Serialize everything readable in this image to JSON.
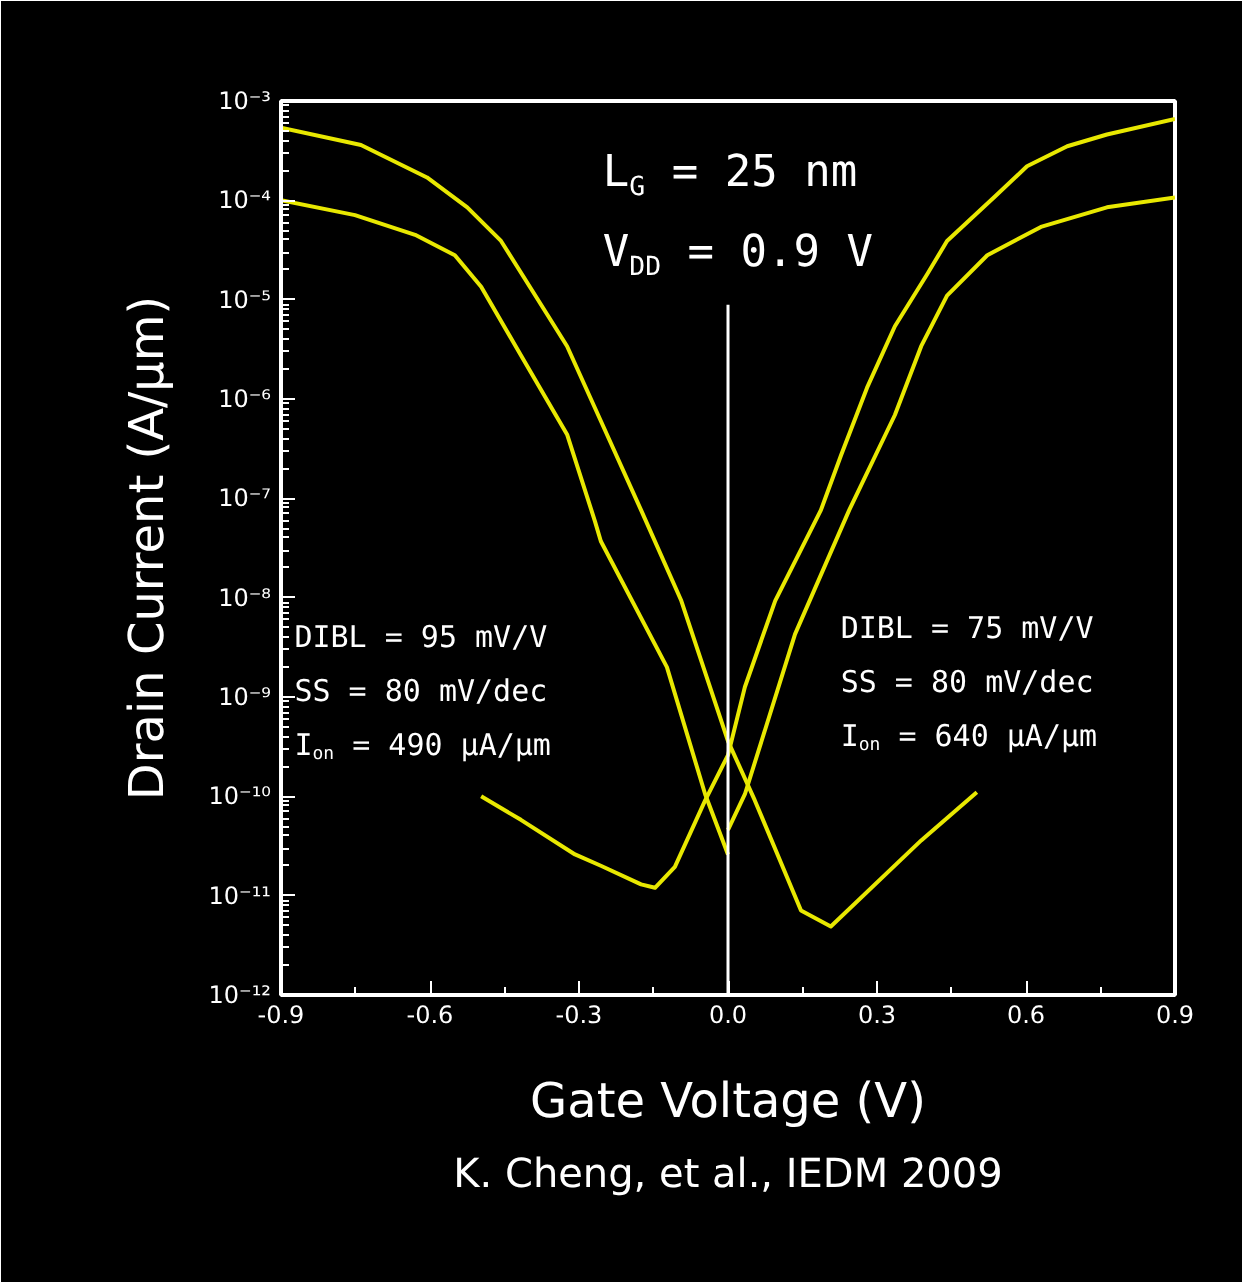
{
  "chart_data": {
    "type": "line",
    "xlabel": "Gate Voltage (V)",
    "ylabel": "Drain Current (A/µm)",
    "log": "y",
    "xlim": [
      -0.9,
      0.9
    ],
    "xticks": [
      {
        "value": -0.9,
        "label": "-0.9"
      },
      {
        "value": -0.6,
        "label": "-0.6"
      },
      {
        "value": -0.3,
        "label": "-0.3"
      },
      {
        "value": 0,
        "label": "0.0"
      },
      {
        "value": 0.3,
        "label": "0.3"
      },
      {
        "value": 0.6,
        "label": "0.6"
      },
      {
        "value": 0.9,
        "label": "0.9"
      }
    ],
    "ylim": [
      1e-12,
      0.001
    ],
    "yticks": [
      {
        "value": 1e-12,
        "label": "10⁻¹²"
      },
      {
        "value": 1e-11,
        "label": "10⁻¹¹"
      },
      {
        "value": 1e-10,
        "label": "10⁻¹⁰"
      },
      {
        "value": 1e-09,
        "label": "10⁻⁹"
      },
      {
        "value": 1e-08,
        "label": "10⁻⁸"
      },
      {
        "value": 1e-07,
        "label": "10⁻⁷"
      },
      {
        "value": 1e-06,
        "label": "10⁻⁶"
      },
      {
        "value": 1e-05,
        "label": "10⁻⁵"
      },
      {
        "value": 0.0001,
        "label": "10⁻⁴"
      },
      {
        "value": 0.001,
        "label": "10⁻³"
      }
    ],
    "series": [
      {
        "color": "#e8e800",
        "x": [
          -0.9,
          -0.739,
          -0.606,
          -0.525,
          -0.457,
          -0.364,
          -0.324,
          -0.256,
          -0.175,
          -0.094,
          0.0,
          0.054,
          0.147,
          0.207,
          0.389,
          0.501
        ],
        "values": [
          0.00054,
          0.00036,
          0.00017,
          8.5e-05,
          3.9e-05,
          7.1e-06,
          3.4e-06,
          6e-07,
          7.6e-08,
          9.3e-09,
          3.6e-10,
          9.1e-11,
          7.1e-12,
          4.9e-12,
          3.6e-11,
          1.1e-10
        ]
      },
      {
        "color": "#e8e800",
        "x": [
          -0.9,
          -0.751,
          -0.63,
          -0.55,
          -0.497,
          -0.417,
          -0.324,
          -0.268,
          -0.256,
          -0.123,
          -0.046,
          0.0
        ],
        "values": [
          0.0001,
          7.1e-05,
          4.5e-05,
          2.8e-05,
          1.35e-05,
          2.75e-06,
          4.4e-07,
          5.9e-08,
          3.7e-08,
          2e-09,
          1.05e-10,
          2.6e-11
        ]
      },
      {
        "color": "#e8e800",
        "x": [
          -0.497,
          -0.417,
          -0.308,
          -0.256,
          -0.175,
          -0.147,
          -0.107,
          -0.046,
          0.0,
          0.034,
          0.095,
          0.187,
          0.228,
          0.28,
          0.336,
          0.401,
          0.441,
          0.538,
          0.602,
          0.683,
          0.763,
          0.9
        ],
        "values": [
          1e-10,
          5.8e-11,
          2.6e-11,
          2e-11,
          1.3e-11,
          1.2e-11,
          1.95e-11,
          9.1e-11,
          2.6e-10,
          1.26e-09,
          9.3e-09,
          7.6e-08,
          2.75e-07,
          1.3e-06,
          5.4e-06,
          1.8e-05,
          3.9e-05,
          0.00011,
          0.00022,
          0.00035,
          0.00046,
          0.00066
        ]
      },
      {
        "color": "#e8e800",
        "x": [
          0.0,
          0.034,
          0.135,
          0.244,
          0.336,
          0.389,
          0.441,
          0.522,
          0.63,
          0.763,
          0.9
        ],
        "values": [
          4.6e-11,
          1.05e-10,
          4.3e-09,
          7.6e-08,
          6.9e-07,
          3.4e-06,
          1.1e-05,
          2.8e-05,
          5.4e-05,
          8.5e-05,
          0.000107
        ]
      }
    ],
    "ref_lines": [
      {
        "axis": "x",
        "value": 0,
        "color": "#ffffff"
      }
    ],
    "annotations": [
      "L$_{G}$ = 25 nm",
      "V$_{DD}$ = 0.9 V",
      "DIBL = 95 mV/V",
      "SS = 80 mV/dec",
      "I$_{on}$ = 490 µA/µm",
      "DIBL = 75 mV/V",
      "SS = 80 mV/dec",
      "I$_{on}$ = 640 µA/µm",
      "K. Cheng, et al., IEDM 2009"
    ]
  }
}
